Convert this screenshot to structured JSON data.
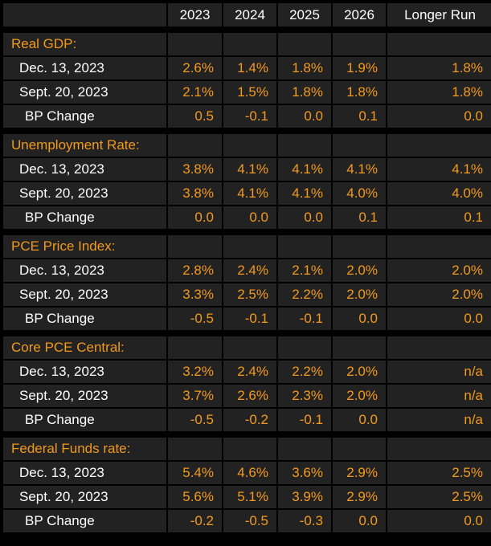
{
  "columns": [
    "",
    "2023",
    "2024",
    "2025",
    "2026",
    "Longer Run"
  ],
  "sections": [
    {
      "title": "Real GDP:",
      "rows": [
        {
          "label": "Dec. 13, 2023",
          "values": [
            "2.6%",
            "1.4%",
            "1.8%",
            "1.9%",
            "1.8%"
          ]
        },
        {
          "label": "Sept. 20, 2023",
          "values": [
            "2.1%",
            "1.5%",
            "1.8%",
            "1.8%",
            "1.8%"
          ]
        },
        {
          "label": "BP Change",
          "values": [
            "0.5",
            "-0.1",
            "0.0",
            "0.1",
            "0.0"
          ]
        }
      ]
    },
    {
      "title": "Unemployment Rate:",
      "rows": [
        {
          "label": "Dec. 13, 2023",
          "values": [
            "3.8%",
            "4.1%",
            "4.1%",
            "4.1%",
            "4.1%"
          ]
        },
        {
          "label": "Sept. 20, 2023",
          "values": [
            "3.8%",
            "4.1%",
            "4.1%",
            "4.0%",
            "4.0%"
          ]
        },
        {
          "label": "BP Change",
          "values": [
            "0.0",
            "0.0",
            "0.0",
            "0.1",
            "0.1"
          ]
        }
      ]
    },
    {
      "title": "PCE Price Index:",
      "rows": [
        {
          "label": "Dec. 13, 2023",
          "values": [
            "2.8%",
            "2.4%",
            "2.1%",
            "2.0%",
            "2.0%"
          ]
        },
        {
          "label": "Sept. 20, 2023",
          "values": [
            "3.3%",
            "2.5%",
            "2.2%",
            "2.0%",
            "2.0%"
          ]
        },
        {
          "label": "BP Change",
          "values": [
            "-0.5",
            "-0.1",
            "-0.1",
            "0.0",
            "0.0"
          ]
        }
      ]
    },
    {
      "title": "Core PCE Central:",
      "rows": [
        {
          "label": "Dec. 13, 2023",
          "values": [
            "3.2%",
            "2.4%",
            "2.2%",
            "2.0%",
            "n/a"
          ]
        },
        {
          "label": "Sept. 20, 2023",
          "values": [
            "3.7%",
            "2.6%",
            "2.3%",
            "2.0%",
            "n/a"
          ]
        },
        {
          "label": "BP Change",
          "values": [
            "-0.5",
            "-0.2",
            "-0.1",
            "0.0",
            "n/a"
          ]
        }
      ]
    },
    {
      "title": "Federal Funds rate:",
      "rows": [
        {
          "label": "Dec. 13, 2023",
          "values": [
            "5.4%",
            "4.6%",
            "3.6%",
            "2.9%",
            "2.5%"
          ]
        },
        {
          "label": "Sept. 20, 2023",
          "values": [
            "5.6%",
            "5.1%",
            "3.9%",
            "2.9%",
            "2.5%"
          ]
        },
        {
          "label": "BP Change",
          "values": [
            "-0.2",
            "-0.5",
            "-0.3",
            "0.0",
            "0.0"
          ]
        }
      ]
    }
  ],
  "colors": {
    "background": "#000000",
    "cell": "#222222",
    "label": "#ffffff",
    "accent": "#f39a1e"
  }
}
